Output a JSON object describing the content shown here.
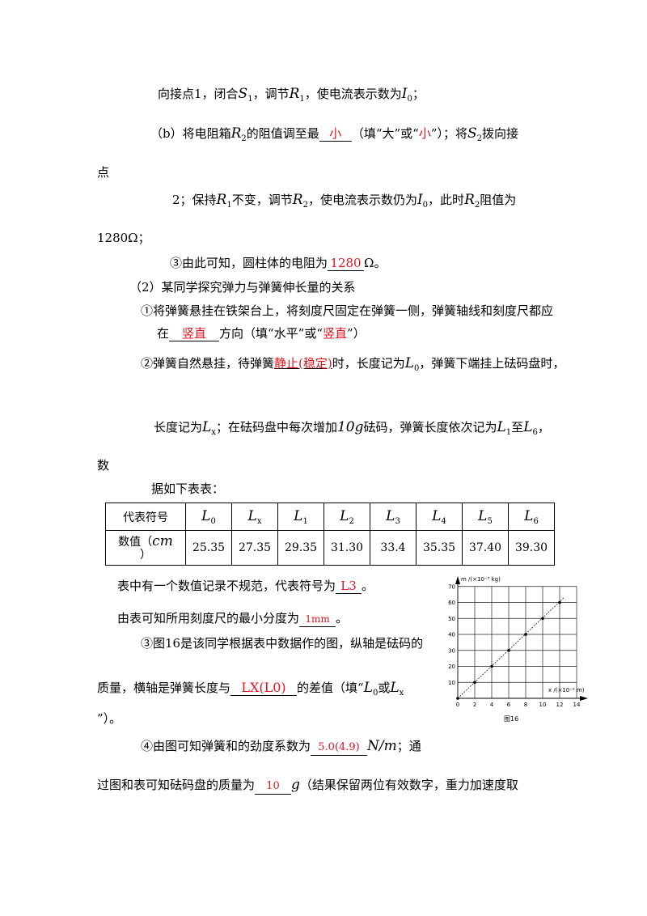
{
  "lines": {
    "l1": "向接点1，闭合",
    "l1b": "，调节",
    "l1c": "，使电流表示数为",
    "l1d": "；",
    "l2a": "（b）将电阻箱",
    "l2b": "的阻值调至最",
    "l2ans": "小",
    "l2c": "（填“大”或“",
    "l2opt": "小",
    "l2d": "”）；将",
    "l2e": "拨向接",
    "l3": "点",
    "l4a": "2；保持",
    "l4b": "不变，调节",
    "l4c": "，使电流表示数仍为",
    "l4d": "，此时",
    "l4e": "阻值为",
    "l5": "1280Ω；",
    "l6a": "③由此可知，圆柱体的电阻为",
    "l6ans": "1280",
    "l6b": "Ω。",
    "l7": "（2）某同学探究弹力与弹簧伸长量的关系",
    "l8": "①将弹簧悬挂在铁架台上，将刻度尺固定在弹簧一侧，弹簧轴线和刻度尺都应",
    "l9a": "在",
    "l9ans": "竖直",
    "l9b": "方向（填“水平”或“",
    "l9opt": "竖直",
    "l9c": "”）",
    "l10a": "②弹簧自然悬挂，待弹簧",
    "l10ans": "静止(稳定)",
    "l10b": "时，长度记为",
    "l10c": "，弹簧下端挂上砝码盘时，",
    "l11a": "长度记为",
    "l11b": "；在砝码盘中每次增加",
    "l11g": "10g",
    "l11c": "砝码，弹簧长度依次记为",
    "l11d": "至",
    "l11e": "，",
    "l12": "数",
    "l13": "据如下表表：",
    "l14a": "表中有一个数值记录不规范，代表符号为",
    "l14ans": "L3",
    "l14b": "。",
    "l15a": "由表可知所用刻度尺的最小分度为",
    "l15ans": "1mm",
    "l15b": "。",
    "l16": "③图16是该同学根据表中数据作的图，纵轴是砝码的",
    "l17a": "质量，横轴是弹簧长度与",
    "l17ans": "LX(L0)",
    "l17b": "的差值（填“",
    "l17c": "或",
    "l18": "”）。",
    "l19a": "④由图可知弹簧和的劲度系数为",
    "l19ans": "5.0(4.9)",
    "l19unit": "N/m",
    "l19b": "；通",
    "l20a": "过图和表可知砝码盘的质量为",
    "l20ans": "10",
    "l20unit": "g",
    "l20b": "（结果保留两位有效数字，重力加速度取"
  },
  "table": {
    "row1_label": "代表符号",
    "row2_label": "数值（",
    "row2_unit": "cm",
    "row2_close": "）",
    "symbols": [
      "L0",
      "Lx",
      "L1",
      "L2",
      "L3",
      "L4",
      "L5",
      "L6"
    ],
    "values": [
      "25.35",
      "27.35",
      "29.35",
      "31.30",
      "33.4",
      "35.35",
      "37.40",
      "39.30"
    ]
  },
  "chart_data": {
    "type": "scatter",
    "ylabel": "m /(×10⁻³ kg)",
    "xlabel": "x /(×10⁻² m)",
    "caption": "图16",
    "x_ticks": [
      "0",
      "2",
      "4",
      "6",
      "8",
      "10",
      "12",
      "14"
    ],
    "y_ticks": [
      "10",
      "20",
      "30",
      "40",
      "50",
      "60",
      "70"
    ],
    "xlim": [
      0,
      14
    ],
    "ylim": [
      0,
      70
    ],
    "points": [
      [
        0,
        0
      ],
      [
        2,
        10
      ],
      [
        4,
        20
      ],
      [
        6,
        30
      ],
      [
        8,
        40
      ],
      [
        10,
        50
      ],
      [
        12,
        60
      ]
    ],
    "fit_line": [
      [
        0,
        0
      ],
      [
        12.5,
        63
      ]
    ]
  }
}
